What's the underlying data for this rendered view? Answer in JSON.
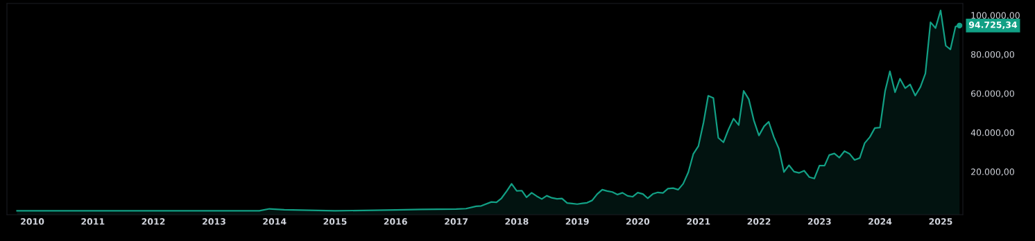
{
  "chart_data": {
    "type": "area",
    "color": "#12a085",
    "x": [
      "2009-10",
      "2010-07",
      "2011-06",
      "2012-06",
      "2013-01",
      "2013-04",
      "2013-10",
      "2013-12",
      "2014-03",
      "2015-01",
      "2016-01",
      "2016-06",
      "2017-01",
      "2017-03",
      "2017-05",
      "2017-06",
      "2017-08",
      "2017-09",
      "2017-10",
      "2017-11",
      "2017-12",
      "2018-01",
      "2018-02",
      "2018-03",
      "2018-04",
      "2018-05",
      "2018-06",
      "2018-07",
      "2018-08",
      "2018-09",
      "2018-10",
      "2018-11",
      "2018-12",
      "2019-01",
      "2019-02",
      "2019-03",
      "2019-04",
      "2019-05",
      "2019-06",
      "2019-07",
      "2019-08",
      "2019-09",
      "2019-10",
      "2019-11",
      "2019-12",
      "2020-01",
      "2020-02",
      "2020-03",
      "2020-04",
      "2020-05",
      "2020-06",
      "2020-07",
      "2020-08",
      "2020-09",
      "2020-10",
      "2020-11",
      "2020-12",
      "2021-01",
      "2021-02",
      "2021-03",
      "2021-04",
      "2021-05",
      "2021-06",
      "2021-07",
      "2021-08",
      "2021-09",
      "2021-10",
      "2021-11",
      "2021-12",
      "2022-01",
      "2022-02",
      "2022-03",
      "2022-04",
      "2022-05",
      "2022-06",
      "2022-07",
      "2022-08",
      "2022-09",
      "2022-10",
      "2022-11",
      "2022-12",
      "2023-01",
      "2023-02",
      "2023-03",
      "2023-04",
      "2023-05",
      "2023-06",
      "2023-07",
      "2023-08",
      "2023-09",
      "2023-10",
      "2023-11",
      "2023-12",
      "2024-01",
      "2024-02",
      "2024-03",
      "2024-04",
      "2024-05",
      "2024-06",
      "2024-07",
      "2024-08",
      "2024-09",
      "2024-10",
      "2024-11",
      "2024-12",
      "2025-01",
      "2025-02",
      "2025-03",
      "2025-04",
      "2025-04-25"
    ],
    "values": [
      0,
      0,
      0,
      0,
      0,
      0,
      0,
      1000,
      500,
      0,
      400,
      700,
      900,
      1100,
      2300,
      2500,
      4500,
      4300,
      6400,
      10000,
      13800,
      10200,
      10300,
      6900,
      9200,
      7500,
      6000,
      7700,
      6600,
      6100,
      6300,
      4000,
      3700,
      3400,
      3800,
      4100,
      5300,
      8500,
      10800,
      10100,
      9600,
      8300,
      9200,
      7600,
      7200,
      9300,
      8600,
      6400,
      8600,
      9400,
      9100,
      11300,
      11600,
      10800,
      13800,
      19700,
      29000,
      33100,
      45200,
      58800,
      57700,
      37300,
      35000,
      41500,
      47100,
      43800,
      61300,
      57000,
      46300,
      38500,
      43200,
      45500,
      37700,
      31800,
      19800,
      23300,
      20000,
      19400,
      20500,
      17200,
      16500,
      23100,
      23100,
      28500,
      29300,
      27200,
      30500,
      29200,
      26000,
      27000,
      34600,
      37700,
      42300,
      42600,
      61200,
      71300,
      60600,
      67500,
      62700,
      64600,
      58900,
      63300,
      70200,
      96400,
      93400,
      102400,
      84400,
      82500,
      94200,
      94725.34
    ],
    "xlim": [
      "2009-08",
      "2025-05-15"
    ],
    "xticks": [
      {
        "value": "2010",
        "label": "2010"
      },
      {
        "value": "2011",
        "label": "2011"
      },
      {
        "value": "2012",
        "label": "2012"
      },
      {
        "value": "2013",
        "label": "2013"
      },
      {
        "value": "2014",
        "label": "2014"
      },
      {
        "value": "2015",
        "label": "2015"
      },
      {
        "value": "2016",
        "label": "2016"
      },
      {
        "value": "2017",
        "label": "2017"
      },
      {
        "value": "2018",
        "label": "2018"
      },
      {
        "value": "2019",
        "label": "2019"
      },
      {
        "value": "2020",
        "label": "2020"
      },
      {
        "value": "2021",
        "label": "2021"
      },
      {
        "value": "2022",
        "label": "2022"
      },
      {
        "value": "2023",
        "label": "2023"
      },
      {
        "value": "2024",
        "label": "2024"
      },
      {
        "value": "2025",
        "label": "2025"
      }
    ],
    "ylim": [
      -2000,
      106000
    ],
    "yticks": [
      {
        "value": 20000,
        "label": "20.000,00"
      },
      {
        "value": 40000,
        "label": "40.000,00"
      },
      {
        "value": 60000,
        "label": "60.000,00"
      },
      {
        "value": 80000,
        "label": "80.000,00"
      },
      {
        "value": 100000,
        "label": "100.000,00"
      }
    ],
    "annotations": [
      {
        "text": "94.725,34",
        "x": "2025-04-25",
        "y": 94725.34
      }
    ],
    "grid": false,
    "legend": false
  }
}
